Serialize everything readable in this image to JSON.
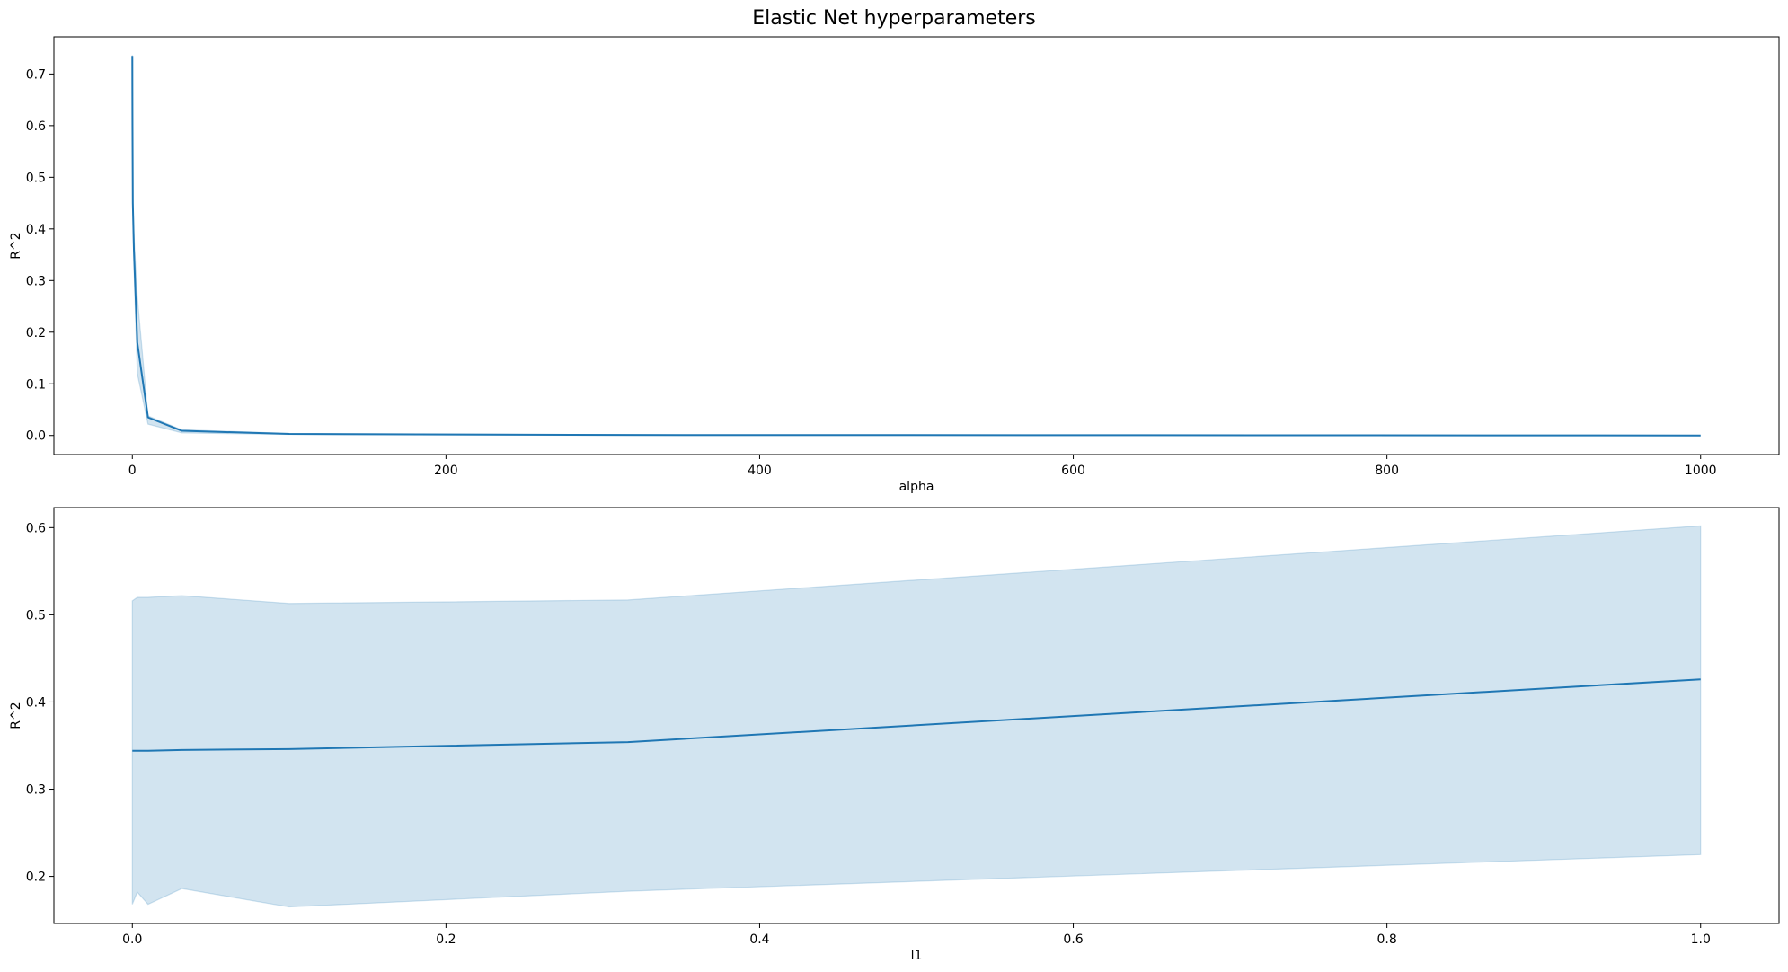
{
  "figure": {
    "title": "Elastic Net hyperparameters"
  },
  "chart_data": [
    {
      "type": "line",
      "title": "",
      "xlabel": "alpha",
      "ylabel": "R^2",
      "xlim": [
        -50,
        1050
      ],
      "ylim": [
        -0.037,
        0.772
      ],
      "xticks": [
        0,
        200,
        400,
        600,
        800,
        1000
      ],
      "xtick_labels": [
        "0",
        "200",
        "400",
        "600",
        "800",
        "1000"
      ],
      "yticks": [
        0.0,
        0.1,
        0.2,
        0.3,
        0.4,
        0.5,
        0.6,
        0.7
      ],
      "ytick_labels": [
        "0.0",
        "0.1",
        "0.2",
        "0.3",
        "0.4",
        "0.5",
        "0.6",
        "0.7"
      ],
      "grid": false,
      "colors": {
        "line": "#1f77b4",
        "band": "#1f77b4"
      },
      "series": [
        {
          "x": [
            0.001,
            0.00316,
            0.01,
            0.0316,
            0.1,
            0.316,
            1,
            3.16,
            10,
            31.6,
            100,
            316,
            1000
          ],
          "y": [
            0.735,
            0.73,
            0.72,
            0.68,
            0.6,
            0.45,
            0.36,
            0.18,
            0.035,
            0.009,
            0.003,
            0.001,
            0.0
          ],
          "ci_low": [
            0.733,
            0.728,
            0.717,
            0.676,
            0.595,
            0.44,
            0.33,
            0.12,
            0.022,
            0.005,
            0.002,
            0.0,
            0.0
          ],
          "ci_high": [
            0.737,
            0.732,
            0.723,
            0.684,
            0.605,
            0.46,
            0.39,
            0.27,
            0.038,
            0.011,
            0.004,
            0.001,
            0.0
          ]
        }
      ]
    },
    {
      "type": "line",
      "title": "",
      "xlabel": "l1",
      "ylabel": "R^2",
      "xlim": [
        -0.05,
        1.05
      ],
      "ylim": [
        0.146,
        0.623
      ],
      "xticks": [
        0.0,
        0.2,
        0.4,
        0.6,
        0.8,
        1.0
      ],
      "xtick_labels": [
        "0.0",
        "0.2",
        "0.4",
        "0.6",
        "0.8",
        "1.0"
      ],
      "yticks": [
        0.2,
        0.3,
        0.4,
        0.5,
        0.6
      ],
      "ytick_labels": [
        "0.2",
        "0.3",
        "0.4",
        "0.5",
        "0.6"
      ],
      "grid": false,
      "colors": {
        "line": "#1f77b4",
        "band": "#1f77b4"
      },
      "series": [
        {
          "x": [
            0.0,
            0.00316,
            0.01,
            0.0316,
            0.1,
            0.316,
            1.0
          ],
          "y": [
            0.344,
            0.344,
            0.344,
            0.345,
            0.346,
            0.354,
            0.426
          ],
          "ci_low": [
            0.168,
            0.182,
            0.168,
            0.186,
            0.165,
            0.183,
            0.225
          ],
          "ci_high": [
            0.516,
            0.52,
            0.52,
            0.522,
            0.513,
            0.517,
            0.602
          ]
        }
      ]
    }
  ]
}
